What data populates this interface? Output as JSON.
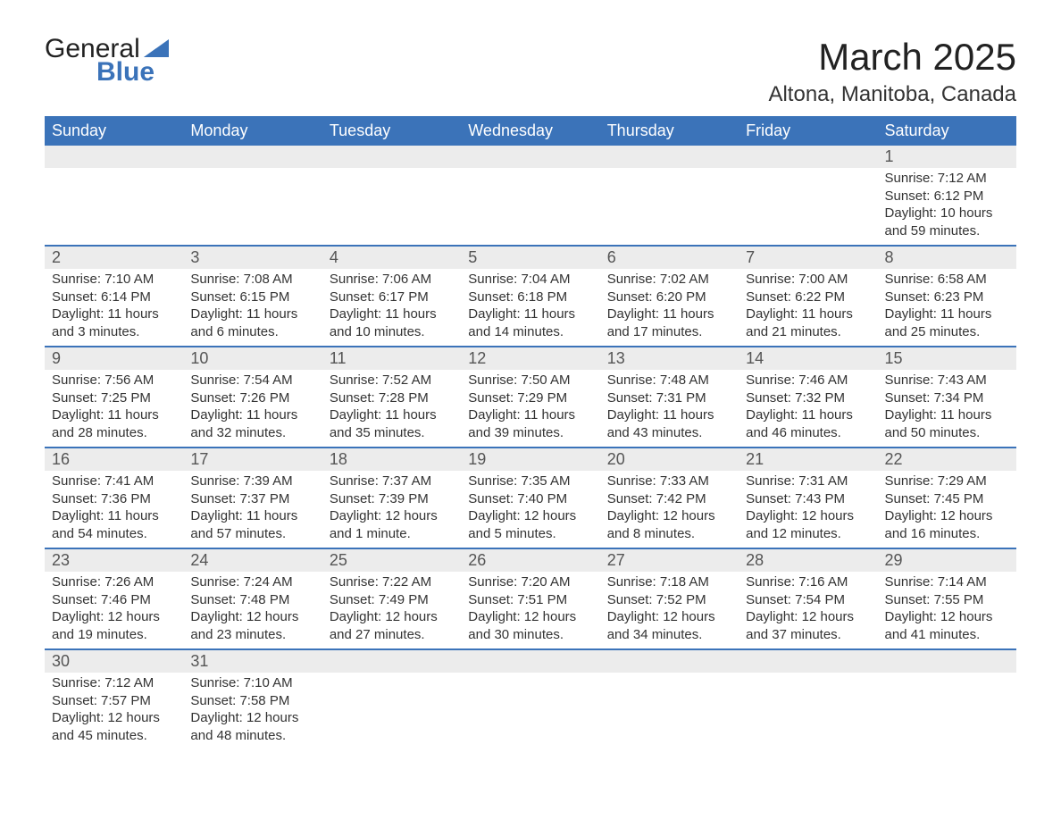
{
  "logo": {
    "word1": "General",
    "word2": "Blue"
  },
  "title": "March 2025",
  "location": "Altona, Manitoba, Canada",
  "day_headers": [
    "Sunday",
    "Monday",
    "Tuesday",
    "Wednesday",
    "Thursday",
    "Friday",
    "Saturday"
  ],
  "colors": {
    "header_bg": "#3b73b9",
    "header_text": "#ffffff",
    "daynum_bg": "#ececec",
    "row_border": "#3b73b9",
    "body_text": "#333333",
    "background": "#ffffff"
  },
  "fonts": {
    "title_size_pt": 32,
    "location_size_pt": 18,
    "header_size_pt": 14,
    "daynum_size_pt": 14,
    "body_size_pt": 11
  },
  "weeks": [
    [
      null,
      null,
      null,
      null,
      null,
      null,
      {
        "n": "1",
        "sunrise": "Sunrise: 7:12 AM",
        "sunset": "Sunset: 6:12 PM",
        "d1": "Daylight: 10 hours",
        "d2": "and 59 minutes."
      }
    ],
    [
      {
        "n": "2",
        "sunrise": "Sunrise: 7:10 AM",
        "sunset": "Sunset: 6:14 PM",
        "d1": "Daylight: 11 hours",
        "d2": "and 3 minutes."
      },
      {
        "n": "3",
        "sunrise": "Sunrise: 7:08 AM",
        "sunset": "Sunset: 6:15 PM",
        "d1": "Daylight: 11 hours",
        "d2": "and 6 minutes."
      },
      {
        "n": "4",
        "sunrise": "Sunrise: 7:06 AM",
        "sunset": "Sunset: 6:17 PM",
        "d1": "Daylight: 11 hours",
        "d2": "and 10 minutes."
      },
      {
        "n": "5",
        "sunrise": "Sunrise: 7:04 AM",
        "sunset": "Sunset: 6:18 PM",
        "d1": "Daylight: 11 hours",
        "d2": "and 14 minutes."
      },
      {
        "n": "6",
        "sunrise": "Sunrise: 7:02 AM",
        "sunset": "Sunset: 6:20 PM",
        "d1": "Daylight: 11 hours",
        "d2": "and 17 minutes."
      },
      {
        "n": "7",
        "sunrise": "Sunrise: 7:00 AM",
        "sunset": "Sunset: 6:22 PM",
        "d1": "Daylight: 11 hours",
        "d2": "and 21 minutes."
      },
      {
        "n": "8",
        "sunrise": "Sunrise: 6:58 AM",
        "sunset": "Sunset: 6:23 PM",
        "d1": "Daylight: 11 hours",
        "d2": "and 25 minutes."
      }
    ],
    [
      {
        "n": "9",
        "sunrise": "Sunrise: 7:56 AM",
        "sunset": "Sunset: 7:25 PM",
        "d1": "Daylight: 11 hours",
        "d2": "and 28 minutes."
      },
      {
        "n": "10",
        "sunrise": "Sunrise: 7:54 AM",
        "sunset": "Sunset: 7:26 PM",
        "d1": "Daylight: 11 hours",
        "d2": "and 32 minutes."
      },
      {
        "n": "11",
        "sunrise": "Sunrise: 7:52 AM",
        "sunset": "Sunset: 7:28 PM",
        "d1": "Daylight: 11 hours",
        "d2": "and 35 minutes."
      },
      {
        "n": "12",
        "sunrise": "Sunrise: 7:50 AM",
        "sunset": "Sunset: 7:29 PM",
        "d1": "Daylight: 11 hours",
        "d2": "and 39 minutes."
      },
      {
        "n": "13",
        "sunrise": "Sunrise: 7:48 AM",
        "sunset": "Sunset: 7:31 PM",
        "d1": "Daylight: 11 hours",
        "d2": "and 43 minutes."
      },
      {
        "n": "14",
        "sunrise": "Sunrise: 7:46 AM",
        "sunset": "Sunset: 7:32 PM",
        "d1": "Daylight: 11 hours",
        "d2": "and 46 minutes."
      },
      {
        "n": "15",
        "sunrise": "Sunrise: 7:43 AM",
        "sunset": "Sunset: 7:34 PM",
        "d1": "Daylight: 11 hours",
        "d2": "and 50 minutes."
      }
    ],
    [
      {
        "n": "16",
        "sunrise": "Sunrise: 7:41 AM",
        "sunset": "Sunset: 7:36 PM",
        "d1": "Daylight: 11 hours",
        "d2": "and 54 minutes."
      },
      {
        "n": "17",
        "sunrise": "Sunrise: 7:39 AM",
        "sunset": "Sunset: 7:37 PM",
        "d1": "Daylight: 11 hours",
        "d2": "and 57 minutes."
      },
      {
        "n": "18",
        "sunrise": "Sunrise: 7:37 AM",
        "sunset": "Sunset: 7:39 PM",
        "d1": "Daylight: 12 hours",
        "d2": "and 1 minute."
      },
      {
        "n": "19",
        "sunrise": "Sunrise: 7:35 AM",
        "sunset": "Sunset: 7:40 PM",
        "d1": "Daylight: 12 hours",
        "d2": "and 5 minutes."
      },
      {
        "n": "20",
        "sunrise": "Sunrise: 7:33 AM",
        "sunset": "Sunset: 7:42 PM",
        "d1": "Daylight: 12 hours",
        "d2": "and 8 minutes."
      },
      {
        "n": "21",
        "sunrise": "Sunrise: 7:31 AM",
        "sunset": "Sunset: 7:43 PM",
        "d1": "Daylight: 12 hours",
        "d2": "and 12 minutes."
      },
      {
        "n": "22",
        "sunrise": "Sunrise: 7:29 AM",
        "sunset": "Sunset: 7:45 PM",
        "d1": "Daylight: 12 hours",
        "d2": "and 16 minutes."
      }
    ],
    [
      {
        "n": "23",
        "sunrise": "Sunrise: 7:26 AM",
        "sunset": "Sunset: 7:46 PM",
        "d1": "Daylight: 12 hours",
        "d2": "and 19 minutes."
      },
      {
        "n": "24",
        "sunrise": "Sunrise: 7:24 AM",
        "sunset": "Sunset: 7:48 PM",
        "d1": "Daylight: 12 hours",
        "d2": "and 23 minutes."
      },
      {
        "n": "25",
        "sunrise": "Sunrise: 7:22 AM",
        "sunset": "Sunset: 7:49 PM",
        "d1": "Daylight: 12 hours",
        "d2": "and 27 minutes."
      },
      {
        "n": "26",
        "sunrise": "Sunrise: 7:20 AM",
        "sunset": "Sunset: 7:51 PM",
        "d1": "Daylight: 12 hours",
        "d2": "and 30 minutes."
      },
      {
        "n": "27",
        "sunrise": "Sunrise: 7:18 AM",
        "sunset": "Sunset: 7:52 PM",
        "d1": "Daylight: 12 hours",
        "d2": "and 34 minutes."
      },
      {
        "n": "28",
        "sunrise": "Sunrise: 7:16 AM",
        "sunset": "Sunset: 7:54 PM",
        "d1": "Daylight: 12 hours",
        "d2": "and 37 minutes."
      },
      {
        "n": "29",
        "sunrise": "Sunrise: 7:14 AM",
        "sunset": "Sunset: 7:55 PM",
        "d1": "Daylight: 12 hours",
        "d2": "and 41 minutes."
      }
    ],
    [
      {
        "n": "30",
        "sunrise": "Sunrise: 7:12 AM",
        "sunset": "Sunset: 7:57 PM",
        "d1": "Daylight: 12 hours",
        "d2": "and 45 minutes."
      },
      {
        "n": "31",
        "sunrise": "Sunrise: 7:10 AM",
        "sunset": "Sunset: 7:58 PM",
        "d1": "Daylight: 12 hours",
        "d2": "and 48 minutes."
      },
      null,
      null,
      null,
      null,
      null
    ]
  ]
}
